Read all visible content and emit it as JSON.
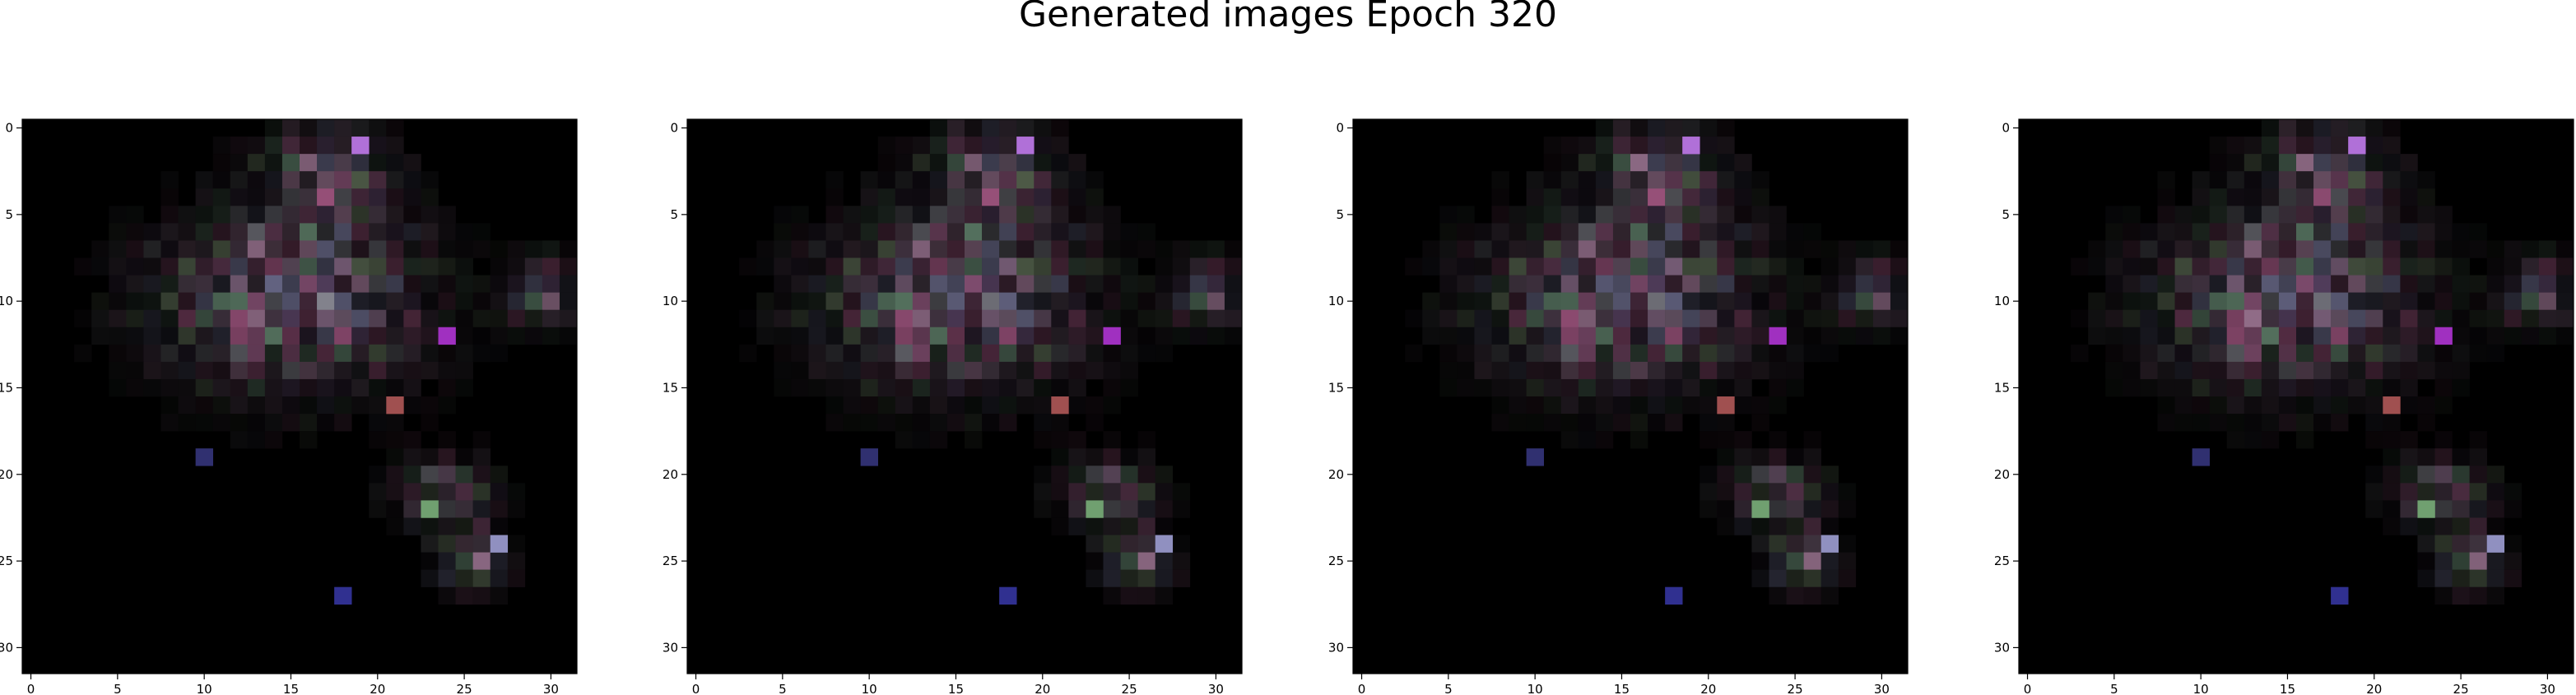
{
  "figure": {
    "suptitle": "Generated images Epoch 320"
  },
  "chart_data": [
    {
      "type": "heatmap",
      "title": "",
      "xlabel": "",
      "ylabel": "",
      "grid": false,
      "image_shape": [
        32,
        32,
        3
      ],
      "xlim": [
        -0.5,
        31.5
      ],
      "ylim": [
        31.5,
        -0.5
      ],
      "xticks": [
        0,
        5,
        10,
        15,
        20,
        25,
        30
      ],
      "yticks": [
        0,
        5,
        10,
        15,
        20,
        25,
        30
      ],
      "xtick_labels": [
        "0",
        "5",
        "10",
        "15",
        "20",
        "25",
        "30"
      ],
      "ytick_labels": [
        "0",
        "5",
        "10",
        "15",
        "20",
        "25",
        "30"
      ],
      "background_color": "#000000"
    },
    {
      "type": "heatmap",
      "title": "",
      "xlabel": "",
      "ylabel": "",
      "grid": false,
      "image_shape": [
        32,
        32,
        3
      ],
      "xlim": [
        -0.5,
        31.5
      ],
      "ylim": [
        31.5,
        -0.5
      ],
      "xticks": [
        0,
        5,
        10,
        15,
        20,
        25,
        30
      ],
      "yticks": [
        0,
        5,
        10,
        15,
        20,
        25,
        30
      ],
      "xtick_labels": [
        "0",
        "5",
        "10",
        "15",
        "20",
        "25",
        "30"
      ],
      "ytick_labels": [
        "0",
        "5",
        "10",
        "15",
        "20",
        "25",
        "30"
      ],
      "background_color": "#000000"
    },
    {
      "type": "heatmap",
      "title": "",
      "xlabel": "",
      "ylabel": "",
      "grid": false,
      "image_shape": [
        32,
        32,
        3
      ],
      "xlim": [
        -0.5,
        31.5
      ],
      "ylim": [
        31.5,
        -0.5
      ],
      "xticks": [
        0,
        5,
        10,
        15,
        20,
        25,
        30
      ],
      "yticks": [
        0,
        5,
        10,
        15,
        20,
        25,
        30
      ],
      "xtick_labels": [
        "0",
        "5",
        "10",
        "15",
        "20",
        "25",
        "30"
      ],
      "ytick_labels": [
        "0",
        "5",
        "10",
        "15",
        "20",
        "25",
        "30"
      ],
      "background_color": "#000000"
    },
    {
      "type": "heatmap",
      "title": "",
      "xlabel": "",
      "ylabel": "",
      "grid": false,
      "image_shape": [
        32,
        32,
        3
      ],
      "xlim": [
        -0.5,
        31.5
      ],
      "ylim": [
        31.5,
        -0.5
      ],
      "xticks": [
        0,
        5,
        10,
        15,
        20,
        25,
        30
      ],
      "yticks": [
        0,
        5,
        10,
        15,
        20,
        25,
        30
      ],
      "xtick_labels": [
        "0",
        "5",
        "10",
        "15",
        "20",
        "25",
        "30"
      ],
      "ytick_labels": [
        "0",
        "5",
        "10",
        "15",
        "20",
        "25",
        "30"
      ],
      "background_color": "#000000"
    }
  ],
  "colors": {
    "background": "#000000",
    "axis": "#000000",
    "figure": "#ffffff"
  }
}
